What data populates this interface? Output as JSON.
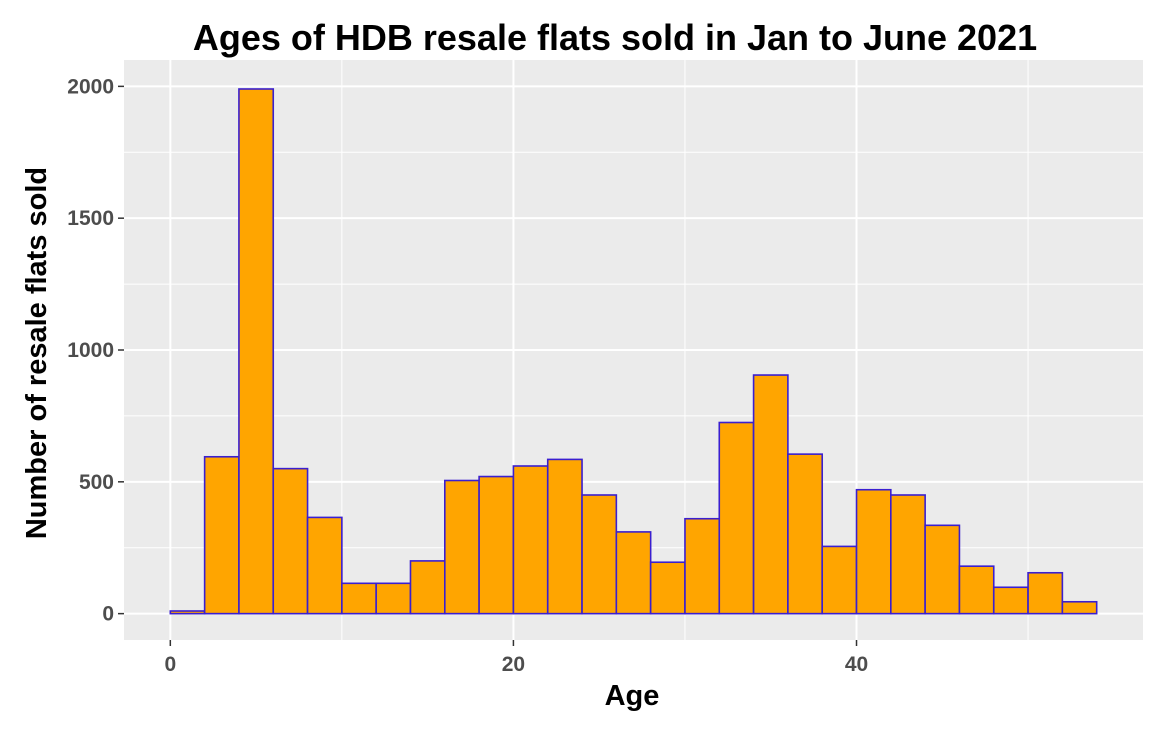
{
  "chart_data": {
    "type": "bar",
    "title": "Ages of HDB resale flats sold in Jan to June 2021",
    "xlabel": "Age",
    "ylabel": "Number of resale flats sold",
    "bin_width": 2,
    "bins": [
      {
        "start": 0,
        "end": 2,
        "value": 10
      },
      {
        "start": 2,
        "end": 4,
        "value": 595
      },
      {
        "start": 4,
        "end": 6,
        "value": 1990
      },
      {
        "start": 6,
        "end": 8,
        "value": 550
      },
      {
        "start": 8,
        "end": 10,
        "value": 365
      },
      {
        "start": 10,
        "end": 12,
        "value": 115
      },
      {
        "start": 12,
        "end": 14,
        "value": 115
      },
      {
        "start": 14,
        "end": 16,
        "value": 200
      },
      {
        "start": 16,
        "end": 18,
        "value": 505
      },
      {
        "start": 18,
        "end": 20,
        "value": 520
      },
      {
        "start": 20,
        "end": 22,
        "value": 560
      },
      {
        "start": 22,
        "end": 24,
        "value": 585
      },
      {
        "start": 24,
        "end": 26,
        "value": 450
      },
      {
        "start": 26,
        "end": 28,
        "value": 310
      },
      {
        "start": 28,
        "end": 30,
        "value": 195
      },
      {
        "start": 30,
        "end": 32,
        "value": 360
      },
      {
        "start": 32,
        "end": 34,
        "value": 725
      },
      {
        "start": 34,
        "end": 36,
        "value": 905
      },
      {
        "start": 36,
        "end": 38,
        "value": 605
      },
      {
        "start": 38,
        "end": 40,
        "value": 255
      },
      {
        "start": 40,
        "end": 42,
        "value": 470
      },
      {
        "start": 42,
        "end": 44,
        "value": 450
      },
      {
        "start": 44,
        "end": 46,
        "value": 335
      },
      {
        "start": 46,
        "end": 48,
        "value": 180
      },
      {
        "start": 48,
        "end": 50,
        "value": 100
      },
      {
        "start": 50,
        "end": 52,
        "value": 155
      },
      {
        "start": 52,
        "end": 54,
        "value": 45
      }
    ],
    "xlim": [
      -2.7,
      56.7
    ],
    "ylim": [
      -100,
      2100
    ],
    "x_ticks": [
      0,
      20,
      40
    ],
    "y_ticks": [
      0,
      500,
      1000,
      1500,
      2000
    ],
    "x_tick_labels": [
      "0",
      "20",
      "40"
    ],
    "y_tick_labels": [
      "0",
      "500",
      "1000",
      "1500",
      "2000"
    ],
    "grid": true,
    "legend": "none",
    "colors": {
      "bar_fill": "#FFA500",
      "bar_outline": "#3A1FD0",
      "panel_background": "#EBEBEB",
      "grid_line": "#FFFFFF",
      "tick_label": "#4D4D4D",
      "text": "#000000"
    }
  }
}
